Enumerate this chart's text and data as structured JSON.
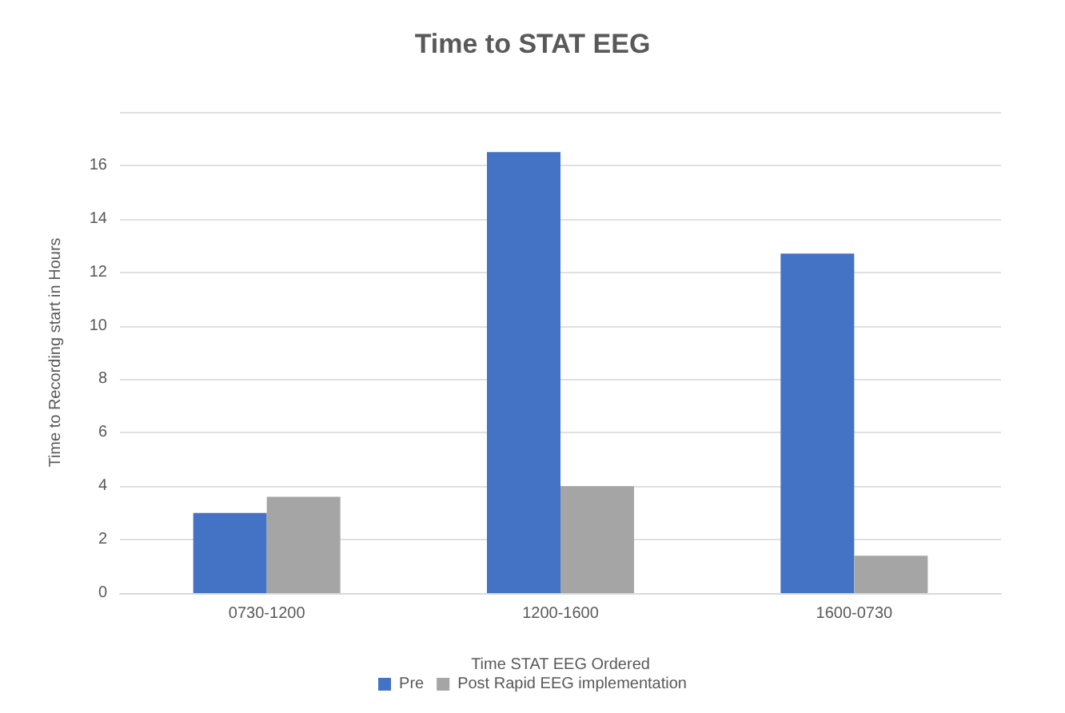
{
  "chart_data": {
    "type": "bar",
    "title": "Time to STAT EEG",
    "xlabel": "Time STAT EEG Ordered",
    "ylabel": "Time to Recording start in Hours",
    "categories": [
      "0730-1200",
      "1200-1600",
      "1600-0730"
    ],
    "series": [
      {
        "name": "Pre",
        "color": "#4472c4",
        "values": [
          3.0,
          16.5,
          12.7
        ]
      },
      {
        "name": "Post Rapid EEG implementation",
        "color": "#a5a5a5",
        "values": [
          3.6,
          4.0,
          1.4
        ]
      }
    ],
    "ylim": [
      0,
      18
    ],
    "yticks": [
      0,
      2,
      4,
      6,
      8,
      10,
      12,
      14,
      16,
      {
        "value": 18,
        "label": null
      }
    ],
    "grid": "y",
    "legend": "bottom"
  }
}
